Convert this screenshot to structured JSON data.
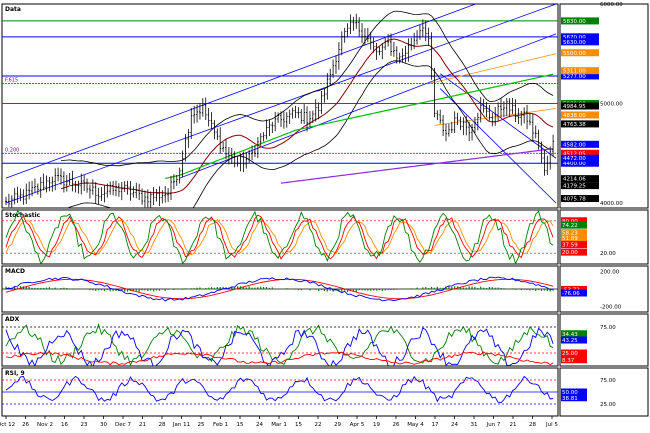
{
  "colors": {
    "background": "#ffffff",
    "frame": "#000000",
    "grid": "#000000",
    "price_bars": "#000000",
    "ma_short": "#8b0000",
    "ma_mid": "#00c000",
    "ma_long": "#8a2be2",
    "bands": "#000000",
    "channel_lines": "#0000ff",
    "fib_level": "#800080",
    "fib_orange": "#ff8c00",
    "hline_green": "#008000",
    "hline_blue": "#0000ff",
    "stoch_k": "#008000",
    "stoch_d": "#ff0000",
    "stoch_slow": "#ff8c00",
    "macd_line": "#0000ff",
    "macd_signal": "#ff0000",
    "macd_hist": "#008000",
    "adx_plus": "#008000",
    "adx_minus": "#0000ff",
    "adx_main": "#ff0000",
    "rsi_line": "#0000ff"
  },
  "chart_data": [
    {
      "id": "price",
      "type": "ohlc",
      "title": "Data",
      "y_ticks": [
        "6000.00",
        "5000.00",
        "4000.00"
      ],
      "hlines": [
        {
          "label": "5830.00",
          "value": 5830,
          "color": "#008000"
        },
        {
          "label": "5670.00",
          "value": 5670,
          "color": "#0000ff"
        },
        {
          "label": "5277.00",
          "value": 5277,
          "color": "#0000ff"
        },
        {
          "label": "5000.00",
          "value": 5000,
          "color": "#008000"
        },
        {
          "label": "4400.00",
          "value": 4400,
          "color": "#0000ff"
        }
      ],
      "right_labels": [
        {
          "label": "5630.00",
          "value": 5620,
          "color": "#0000ff"
        },
        {
          "label": "5500.00",
          "value": 5510,
          "color": "#ff8c00"
        },
        {
          "label": "5311.00",
          "value": 5330,
          "color": "#ff8c00"
        },
        {
          "label": "4984.95",
          "value": 4975,
          "color": "#000000"
        },
        {
          "label": "4838.00",
          "value": 4885,
          "color": "#ff8c00"
        },
        {
          "label": "4763.38",
          "value": 4795,
          "color": "#000000"
        },
        {
          "label": "4582.00",
          "value": 4590,
          "color": "#0000ff"
        },
        {
          "label": "4512.05",
          "value": 4500,
          "color": "#ff0000"
        },
        {
          "label": "4472.00",
          "value": 4450,
          "color": "#0000ff"
        },
        {
          "label": "4214.06",
          "value": 4245,
          "color": "#000000"
        },
        {
          "label": "4179.25",
          "value": 4175,
          "color": "#000000"
        },
        {
          "label": "4075.78",
          "value": 4045,
          "color": "#000000"
        }
      ],
      "fib_labels": [
        {
          "label": "F.615",
          "value": 5200
        },
        {
          "label": "0.200",
          "value": 4500
        }
      ],
      "ylim": [
        3950,
        6000
      ]
    },
    {
      "id": "stochastic",
      "type": "line",
      "title": "Stochastic",
      "y_ticks": [
        "20.00"
      ],
      "right_labels": [
        {
          "label": "80.00",
          "value": 80,
          "color": "#ff0000"
        },
        {
          "label": "74.22",
          "value": 72,
          "color": "#008000"
        },
        {
          "label": "58.23",
          "value": 58,
          "color": "#ff8c00"
        },
        {
          "label": "51.89",
          "value": 48,
          "color": "#ff8c00"
        },
        {
          "label": "37.59",
          "value": 36,
          "color": "#ff0000"
        },
        {
          "label": "20.00",
          "value": 22,
          "color": "#ff0000"
        }
      ],
      "ylim": [
        0,
        100
      ]
    },
    {
      "id": "macd",
      "type": "line",
      "title": "MACD",
      "y_ticks": [
        "200.00",
        "-200.00"
      ],
      "right_labels": [
        {
          "label": "-53.72",
          "value": -5,
          "color": "#ff0000"
        },
        {
          "label": "-76.06",
          "value": -45,
          "color": "#0000ff"
        }
      ],
      "ylim": [
        -260,
        260
      ]
    },
    {
      "id": "adx",
      "type": "line",
      "title": "ADX",
      "y_ticks": [
        "75.00"
      ],
      "right_labels": [
        {
          "label": "34.43",
          "value": 62,
          "color": "#008000"
        },
        {
          "label": "43.25",
          "value": 50,
          "color": "#0000ff"
        },
        {
          "label": "25.00",
          "value": 25,
          "color": "#ff0000"
        },
        {
          "label": "8.37",
          "value": 12,
          "color": "#ff0000"
        }
      ],
      "ylim": [
        0,
        100
      ]
    },
    {
      "id": "rsi",
      "type": "line",
      "title": "RSI, 9",
      "y_ticks": [
        "75.00",
        "25.00"
      ],
      "right_labels": [
        {
          "label": "50.00",
          "value": 50,
          "color": "#0000ff"
        },
        {
          "label": "38.81",
          "value": 38,
          "color": "#0000ff"
        }
      ],
      "ylim": [
        0,
        100
      ]
    }
  ],
  "x_axis": {
    "labels": [
      "Oct 12",
      "26",
      "Nov 2",
      "16",
      "23",
      "30",
      "Dec 7",
      "21",
      "28",
      "Jan 11",
      "25",
      "Feb 1",
      "15",
      "24",
      "Mar 1",
      "15",
      "22",
      "29",
      "Apr 5",
      "19",
      "26",
      "May 4",
      "17",
      "24",
      "31",
      "Jun 7",
      "21",
      "28",
      "Jul 5"
    ]
  }
}
